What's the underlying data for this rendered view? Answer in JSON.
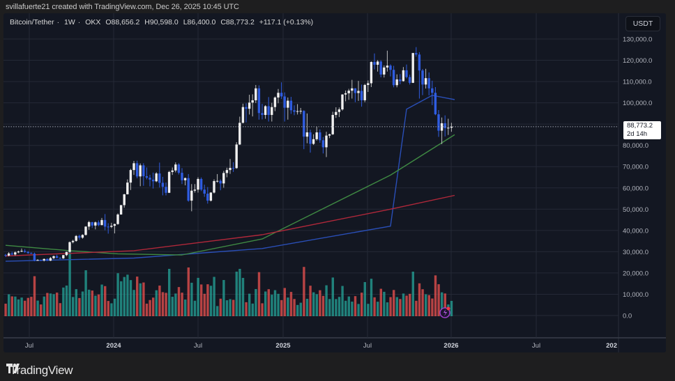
{
  "credit": "svillafuerte21 created with TradingView.com, Dec 26, 2025 10:45 UTC",
  "legend": {
    "symbol": "Bitcoin/Tether",
    "interval": "1W",
    "exchange": "OKX",
    "open": "O88,656.2",
    "high": "H90,598.0",
    "low": "L86,400.0",
    "close": "C88,773.2",
    "change": "+117.1 (+0.13%)",
    "separator": "·"
  },
  "currency_button": "USDT",
  "last_price": {
    "value": "88,773.2",
    "countdown": "2d 14h"
  },
  "footer": {
    "logo_mark": "TV",
    "logo_text": "TradingView"
  },
  "colors": {
    "background": "#131722",
    "grid": "#242936",
    "candle_up": "#f0f0f0",
    "candle_down": "#2f5ce0",
    "volume_up": "#26a69a",
    "volume_down": "#ef5350",
    "ma_blue": "#2a4fb8",
    "ma_green": "#3f8a43",
    "ma_red": "#b0283a"
  },
  "chart_data": {
    "type": "candlestick",
    "title": "Bitcoin/Tether · 1W · OKX",
    "ylabel": "USDT",
    "ylim": [
      0,
      130000
    ],
    "y_ticks": [
      "130,000.0",
      "120,000.0",
      "110,000.0",
      "100,000.0",
      "80,000.0",
      "70,000.0",
      "60,000.0",
      "50,000.0",
      "40,000.0",
      "30,000.0",
      "20,000.0",
      "10,000.0",
      "0.0"
    ],
    "x_ticks": [
      "Jul",
      "2024",
      "Jul",
      "2025",
      "Jul",
      "2026",
      "Jul",
      "202"
    ],
    "last_close": 88773.2,
    "candles_ohlc": [
      [
        28500,
        29000,
        27500,
        28200
      ],
      [
        28200,
        29800,
        27800,
        29200
      ],
      [
        29200,
        30000,
        28300,
        28700
      ],
      [
        28700,
        30200,
        28100,
        29700
      ],
      [
        29700,
        30500,
        29300,
        30100
      ],
      [
        30100,
        31500,
        29800,
        30400
      ],
      [
        30400,
        31200,
        29500,
        29900
      ],
      [
        29900,
        30300,
        29000,
        29400
      ],
      [
        29400,
        29700,
        28900,
        29100
      ],
      [
        29100,
        29600,
        25500,
        26000
      ],
      [
        26000,
        26500,
        25700,
        26100
      ],
      [
        26100,
        26300,
        25600,
        25900
      ],
      [
        25900,
        26800,
        25400,
        26600
      ],
      [
        26600,
        26900,
        25600,
        25800
      ],
      [
        25800,
        27500,
        25600,
        27000
      ],
      [
        27000,
        28200,
        26500,
        27900
      ],
      [
        27900,
        28600,
        26900,
        27100
      ],
      [
        27100,
        27400,
        26600,
        26900
      ],
      [
        26900,
        28500,
        26600,
        28400
      ],
      [
        28400,
        30000,
        27900,
        29900
      ],
      [
        29900,
        34800,
        29800,
        34500
      ],
      [
        34500,
        35600,
        33900,
        35100
      ],
      [
        35100,
        37800,
        34700,
        37400
      ],
      [
        37400,
        38000,
        35600,
        36600
      ],
      [
        36600,
        38200,
        36100,
        37900
      ],
      [
        37900,
        42000,
        37600,
        41800
      ],
      [
        41800,
        44500,
        40300,
        43900
      ],
      [
        43900,
        44000,
        41200,
        42300
      ],
      [
        42300,
        44200,
        40500,
        43800
      ],
      [
        43800,
        44700,
        42000,
        42500
      ],
      [
        42500,
        45900,
        42400,
        44900
      ],
      [
        44900,
        47700,
        40100,
        41800
      ],
      [
        41800,
        43400,
        38500,
        41700
      ],
      [
        41700,
        43600,
        41100,
        42200
      ],
      [
        42200,
        43200,
        38600,
        43000
      ],
      [
        43000,
        48000,
        42700,
        47500
      ],
      [
        47500,
        52000,
        47400,
        51900
      ],
      [
        51900,
        57200,
        50700,
        57000
      ],
      [
        57000,
        64000,
        56900,
        62500
      ],
      [
        62500,
        69000,
        59000,
        68400
      ],
      [
        68400,
        72700,
        66100,
        71600
      ],
      [
        71600,
        72800,
        64500,
        65400
      ],
      [
        65400,
        71500,
        60800,
        70600
      ],
      [
        70600,
        71600,
        61000,
        65500
      ],
      [
        65500,
        69600,
        64000,
        64800
      ],
      [
        64800,
        66200,
        60700,
        63900
      ],
      [
        63900,
        67200,
        59700,
        63100
      ],
      [
        63100,
        67400,
        62700,
        66800
      ],
      [
        66800,
        71900,
        60200,
        62400
      ],
      [
        62400,
        65200,
        56500,
        60500
      ],
      [
        60500,
        62500,
        56500,
        57700
      ],
      [
        57700,
        68000,
        57600,
        67500
      ],
      [
        67500,
        69600,
        66100,
        68200
      ],
      [
        68200,
        72000,
        67300,
        71000
      ],
      [
        71000,
        71600,
        66300,
        67100
      ],
      [
        67100,
        69300,
        61800,
        63600
      ],
      [
        63600,
        64900,
        61200,
        64600
      ],
      [
        64600,
        66500,
        53500,
        54000
      ],
      [
        54000,
        61800,
        49000,
        58700
      ],
      [
        58700,
        61800,
        57800,
        59200
      ],
      [
        59200,
        65000,
        57800,
        64200
      ],
      [
        64200,
        64900,
        58500,
        59200
      ],
      [
        59200,
        61500,
        55800,
        57300
      ],
      [
        57300,
        60400,
        52600,
        54000
      ],
      [
        54000,
        58000,
        53600,
        57800
      ],
      [
        57800,
        64000,
        57400,
        63200
      ],
      [
        63200,
        66500,
        62500,
        63300
      ],
      [
        63300,
        64000,
        58900,
        62100
      ],
      [
        62100,
        68000,
        60100,
        67000
      ],
      [
        67000,
        69500,
        65000,
        68400
      ],
      [
        68400,
        73600,
        66600,
        69400
      ],
      [
        69400,
        72100,
        67500,
        69300
      ],
      [
        69300,
        81500,
        69000,
        80400
      ],
      [
        80400,
        93500,
        80200,
        90600
      ],
      [
        90600,
        99600,
        90300,
        98000
      ],
      [
        98000,
        99800,
        90800,
        97200
      ],
      [
        97200,
        103800,
        94500,
        100100
      ],
      [
        100100,
        104000,
        93600,
        101200
      ],
      [
        101200,
        108400,
        99900,
        106800
      ],
      [
        106800,
        108200,
        92100,
        95200
      ],
      [
        95200,
        99500,
        92200,
        94300
      ],
      [
        94300,
        98900,
        92500,
        98400
      ],
      [
        98400,
        102700,
        91200,
        94300
      ],
      [
        94300,
        100000,
        91200,
        98000
      ],
      [
        98000,
        103000,
        96100,
        102500
      ],
      [
        102500,
        106500,
        99800,
        104700
      ],
      [
        104700,
        109600,
        101800,
        103000
      ],
      [
        103000,
        104900,
        91200,
        97700
      ],
      [
        97700,
        102500,
        92100,
        101000
      ],
      [
        101000,
        102800,
        94800,
        96500
      ],
      [
        96500,
        98800,
        94200,
        95800
      ],
      [
        95800,
        99400,
        94500,
        96100
      ],
      [
        96100,
        97600,
        94700,
        96200
      ],
      [
        96200,
        96500,
        78200,
        84100
      ],
      [
        84100,
        95000,
        81000,
        86100
      ],
      [
        86100,
        87400,
        76600,
        80700
      ],
      [
        80700,
        85200,
        80200,
        82900
      ],
      [
        82900,
        88800,
        82200,
        86100
      ],
      [
        86100,
        87500,
        81200,
        82400
      ],
      [
        82400,
        83900,
        76200,
        79100
      ],
      [
        79100,
        86400,
        74500,
        84600
      ],
      [
        84600,
        85500,
        83400,
        85200
      ],
      [
        85200,
        95800,
        84900,
        94300
      ],
      [
        94300,
        97900,
        92900,
        95700
      ],
      [
        95700,
        97800,
        93300,
        96900
      ],
      [
        96900,
        104100,
        96300,
        103900
      ],
      [
        103900,
        105800,
        100700,
        104500
      ],
      [
        104500,
        106600,
        101400,
        105700
      ],
      [
        105700,
        110800,
        102000,
        106800
      ],
      [
        106800,
        106900,
        100300,
        104600
      ],
      [
        104600,
        110300,
        100900,
        105600
      ],
      [
        105600,
        108600,
        98200,
        101200
      ],
      [
        101200,
        108900,
        100300,
        108400
      ],
      [
        108400,
        110500,
        105100,
        109200
      ],
      [
        109200,
        119500,
        107400,
        119200
      ],
      [
        119200,
        123200,
        115700,
        117900
      ],
      [
        117900,
        120100,
        114700,
        119400
      ],
      [
        119400,
        120000,
        112000,
        113300
      ],
      [
        113300,
        117600,
        111900,
        116600
      ],
      [
        116600,
        124500,
        114700,
        117500
      ],
      [
        117500,
        118100,
        112400,
        115500
      ],
      [
        115500,
        117400,
        107300,
        108300
      ],
      [
        108300,
        113400,
        107300,
        111000
      ],
      [
        111000,
        113500,
        108700,
        110200
      ],
      [
        110200,
        116800,
        110000,
        115300
      ],
      [
        115300,
        118000,
        111500,
        112100
      ],
      [
        112100,
        113200,
        108600,
        109400
      ],
      [
        109400,
        123500,
        109300,
        123400
      ],
      [
        123400,
        126200,
        121700,
        122700
      ],
      [
        122700,
        123800,
        102000,
        115200
      ],
      [
        115200,
        115900,
        103600,
        108600
      ],
      [
        108600,
        116000,
        106700,
        111600
      ],
      [
        111600,
        114300,
        103500,
        106800
      ],
      [
        106800,
        110400,
        98900,
        104700
      ],
      [
        104700,
        107400,
        94200,
        94600
      ],
      [
        94600,
        96600,
        84000,
        86900
      ],
      [
        86900,
        93100,
        80600,
        90400
      ],
      [
        90400,
        94100,
        84200,
        88100
      ],
      [
        88100,
        92500,
        84900,
        88300
      ],
      [
        88300,
        90600,
        86400,
        88773
      ]
    ],
    "volume_up_down": "up=teal, down=red; heights read relative to panel",
    "moving_averages": [
      {
        "name": "MA (blue)",
        "color": "#2a4fb8",
        "approx_points": [
          [
            0,
            25500
          ],
          [
            40,
            27000
          ],
          [
            80,
            31500
          ],
          [
            120,
            42000
          ],
          [
            125,
            97000
          ],
          [
            133,
            103500
          ],
          [
            140,
            101500
          ]
        ]
      },
      {
        "name": "MA (green)",
        "color": "#3f8a43",
        "approx_points": [
          [
            0,
            33000
          ],
          [
            20,
            30500
          ],
          [
            35,
            29000
          ],
          [
            55,
            28500
          ],
          [
            80,
            36000
          ],
          [
            120,
            66000
          ],
          [
            140,
            85000
          ]
        ]
      },
      {
        "name": "MA (red)",
        "color": "#b0283a",
        "approx_points": [
          [
            0,
            28000
          ],
          [
            40,
            30500
          ],
          [
            80,
            38000
          ],
          [
            120,
            50000
          ],
          [
            140,
            56500
          ]
        ]
      }
    ]
  }
}
